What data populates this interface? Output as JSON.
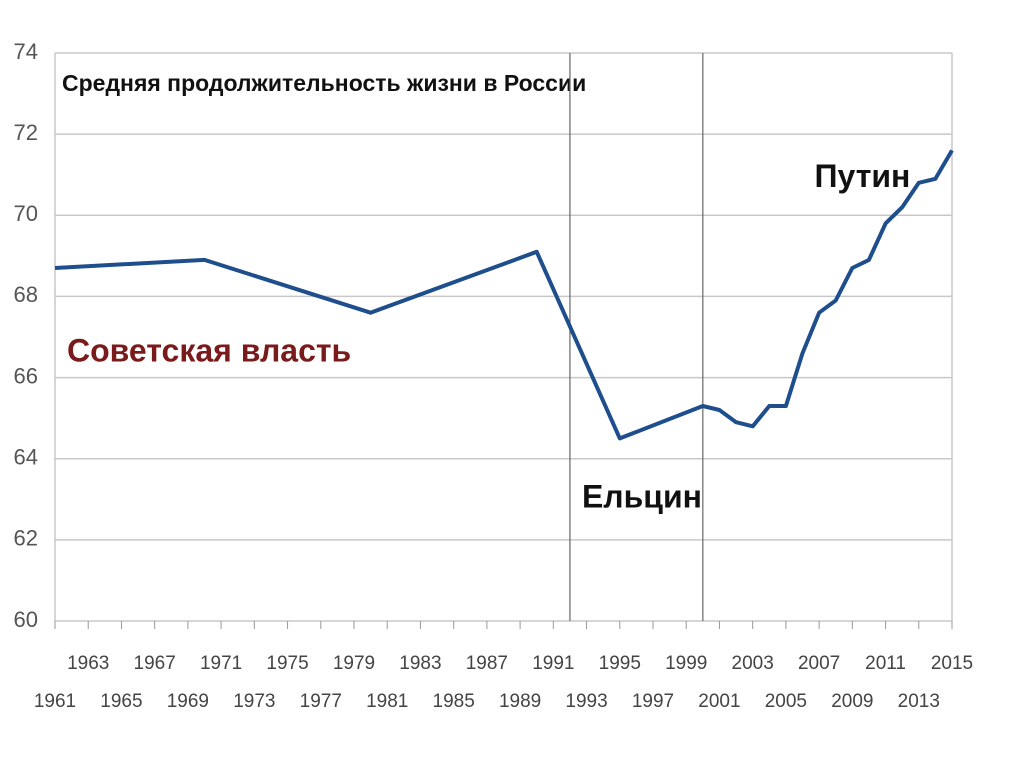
{
  "chart_data": {
    "type": "line",
    "title": "Средняя продолжительность жизни в России",
    "x": [
      1961,
      1970,
      1980,
      1990,
      1995,
      2000,
      2001,
      2002,
      2003,
      2004,
      2005,
      2006,
      2007,
      2008,
      2009,
      2010,
      2011,
      2012,
      2013,
      2014,
      2015
    ],
    "values": [
      68.7,
      68.9,
      67.6,
      69.1,
      64.5,
      65.3,
      65.2,
      64.9,
      64.8,
      65.3,
      65.3,
      66.6,
      67.6,
      67.9,
      68.7,
      68.9,
      69.8,
      70.2,
      70.8,
      70.9,
      71.6
    ],
    "color": "#1f4e8c",
    "xlim": [
      1961,
      2015
    ],
    "ylim": [
      60,
      74
    ],
    "xticks": [
      1961,
      1963,
      1965,
      1967,
      1969,
      1971,
      1973,
      1975,
      1977,
      1979,
      1981,
      1983,
      1985,
      1987,
      1989,
      1991,
      1993,
      1995,
      1997,
      1999,
      2001,
      2003,
      2005,
      2007,
      2009,
      2011,
      2013,
      2015
    ],
    "yticks": [
      60,
      62,
      64,
      66,
      68,
      70,
      72,
      74
    ],
    "grid": true,
    "period_lines": [
      1992,
      2000
    ],
    "annotations": [
      {
        "text": "Советская власть",
        "x": 1961,
        "y": 66.6,
        "color": "#7a1a1a"
      },
      {
        "text": "Ельцин",
        "x": 1992,
        "y": 63.0,
        "color": "#111111"
      },
      {
        "text": "Путин",
        "x": 2006,
        "y": 70.9,
        "color": "#111111"
      }
    ]
  }
}
